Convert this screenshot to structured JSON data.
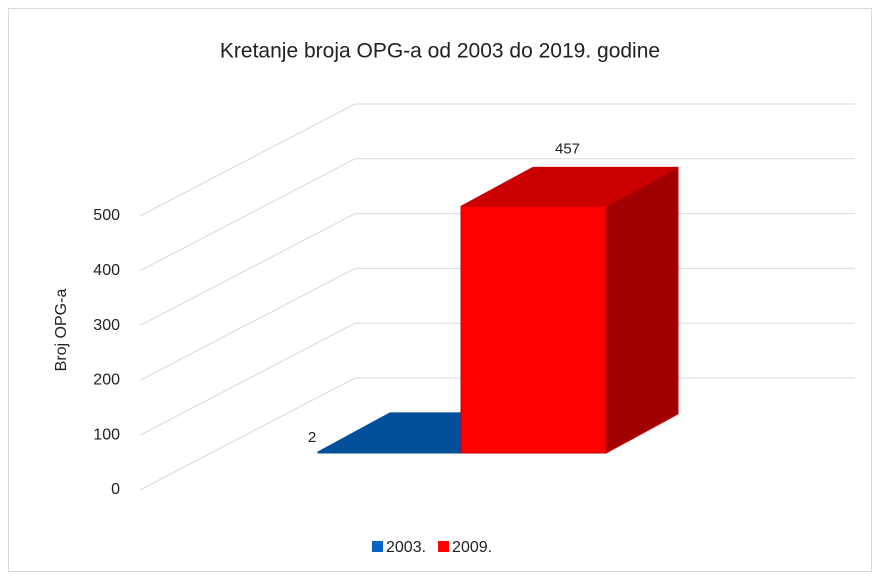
{
  "chart_data": {
    "type": "bar3d",
    "title": "Kretanje broja OPG-a od 2003 do 2019. godine",
    "y_label": "Broj OPG-a",
    "series": [
      {
        "name": "2003.",
        "color": "#0563c1",
        "values": [
          2
        ]
      },
      {
        "name": "2009.",
        "color": "#ff0000",
        "values": [
          457
        ]
      }
    ],
    "ylim": [
      0,
      500
    ],
    "yticks": [
      0,
      100,
      200,
      300,
      400,
      500
    ],
    "grid": true,
    "legend": "bottom"
  }
}
